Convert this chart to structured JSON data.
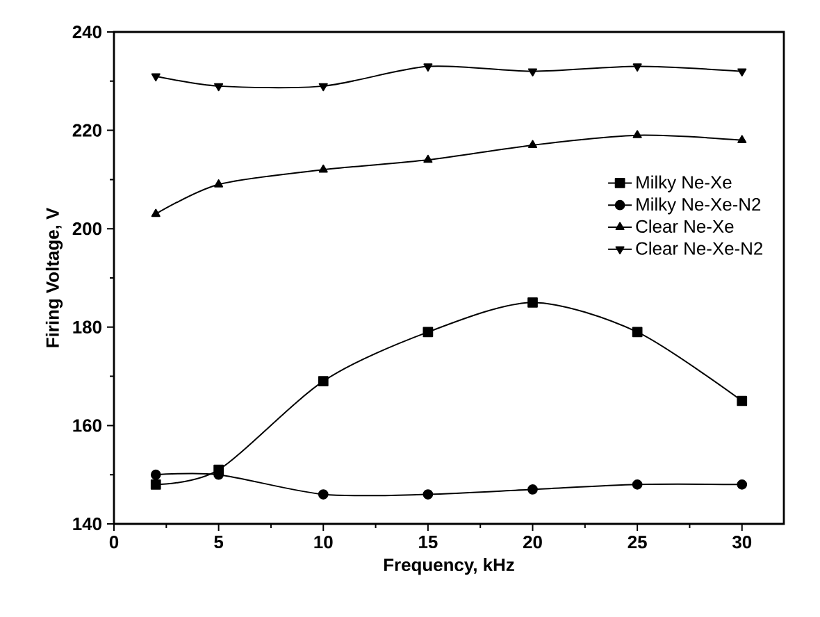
{
  "chart_data": {
    "type": "line",
    "xlabel": "Frequency, kHz",
    "ylabel": "Firing Voltage, V",
    "x": [
      2,
      5,
      10,
      15,
      20,
      25,
      30
    ],
    "series": [
      {
        "name": "Milky Ne-Xe",
        "color": "#000000",
        "marker": "square",
        "values": [
          148,
          151,
          169,
          179,
          185,
          179,
          165
        ]
      },
      {
        "name": "Milky Ne-Xe-N2",
        "color": "#000000",
        "marker": "circle",
        "values": [
          150,
          150,
          146,
          146,
          147,
          148,
          148
        ]
      },
      {
        "name": "Clear Ne-Xe",
        "color": "#000000",
        "marker": "triangle",
        "values": [
          203,
          209,
          212,
          214,
          217,
          219,
          218
        ]
      },
      {
        "name": "Clear Ne-Xe-N2",
        "color": "#000000",
        "marker": "triangle-down",
        "values": [
          231,
          229,
          229,
          233,
          232,
          233,
          232
        ]
      }
    ],
    "xlim": [
      0,
      32
    ],
    "ylim": [
      140,
      240
    ],
    "xticks": [
      0,
      5,
      10,
      15,
      20,
      25,
      30
    ],
    "yticks": [
      140,
      160,
      180,
      200,
      220,
      240
    ],
    "legend": "right",
    "grid": false,
    "line_style": "solid"
  }
}
